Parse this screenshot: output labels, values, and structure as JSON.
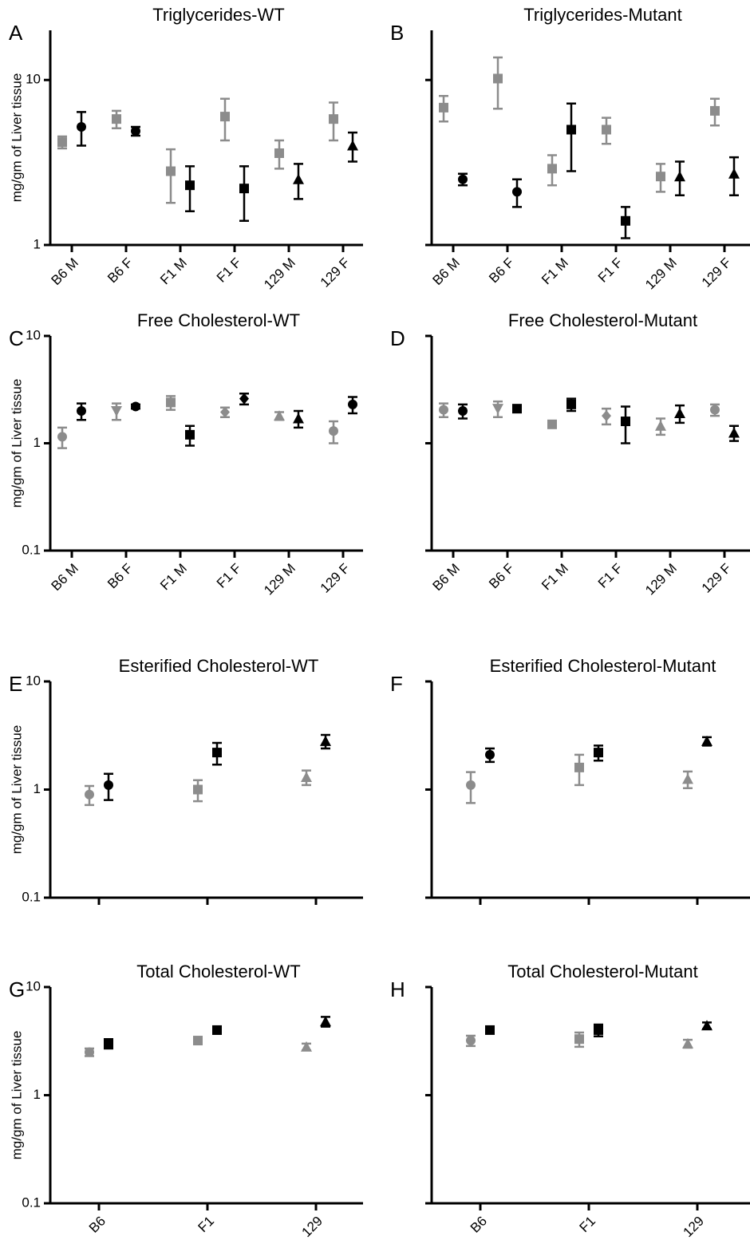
{
  "chart_data": [
    {
      "type": "scatter",
      "panel": "A",
      "title": "Triglycerides-WT",
      "ylabel": "mg/gm of Liver tissue",
      "categories": [
        "B6 M",
        "B6 F",
        "F1 M",
        "F1 F",
        "129 M",
        "129 F"
      ],
      "ylim": [
        1,
        20
      ],
      "yticks": [
        1,
        10
      ],
      "log_y": true,
      "ytick_labels": true,
      "series": [
        {
          "color": "#8c8c8c",
          "markers": [
            "square",
            "square",
            "square",
            "square",
            "square",
            "square"
          ],
          "values": [
            4.2,
            5.8,
            2.8,
            6.0,
            3.6,
            5.8
          ],
          "errors": [
            0.35,
            0.7,
            1.0,
            1.7,
            0.7,
            1.5
          ]
        },
        {
          "color": "#000000",
          "markers": [
            "circle",
            "circle",
            "square",
            "square",
            "triangle",
            "triangle"
          ],
          "values": [
            5.2,
            4.9,
            2.3,
            2.2,
            2.5,
            4.0
          ],
          "errors": [
            1.2,
            0.3,
            0.7,
            0.8,
            0.6,
            0.8
          ]
        }
      ]
    },
    {
      "type": "scatter",
      "panel": "B",
      "title": "Triglycerides-Mutant",
      "categories": [
        "B6 M",
        "B6 F",
        "F1 M",
        "F1 F",
        "129 M",
        "129 F"
      ],
      "ylim": [
        1,
        20
      ],
      "yticks": [
        1,
        10
      ],
      "log_y": true,
      "ytick_labels": false,
      "series": [
        {
          "color": "#8c8c8c",
          "markers": [
            "square",
            "square",
            "square",
            "square",
            "square",
            "square"
          ],
          "values": [
            6.8,
            10.2,
            2.9,
            5.0,
            2.6,
            6.5
          ],
          "errors": [
            1.2,
            3.5,
            0.6,
            0.9,
            0.5,
            1.2
          ]
        },
        {
          "color": "#000000",
          "markers": [
            "circle",
            "circle",
            "square",
            "square",
            "triangle",
            "triangle"
          ],
          "values": [
            2.5,
            2.1,
            5.0,
            1.4,
            2.6,
            2.7
          ],
          "errors": [
            0.2,
            0.4,
            2.2,
            0.3,
            0.6,
            0.7
          ]
        }
      ]
    },
    {
      "type": "scatter",
      "panel": "C",
      "title": "Free Cholesterol-WT",
      "ylabel": "mg/gm of Liver tissue",
      "categories": [
        "B6 M",
        "B6 F",
        "F1 M",
        "F1 F",
        "129 M",
        "129 F"
      ],
      "ylim": [
        0.1,
        10
      ],
      "yticks": [
        0.1,
        1,
        10
      ],
      "log_y": true,
      "ytick_labels": true,
      "series": [
        {
          "color": "#8c8c8c",
          "markers": [
            "circle",
            "triangle-down",
            "square",
            "diamond",
            "triangle",
            "circle"
          ],
          "values": [
            1.15,
            2.0,
            2.4,
            1.95,
            1.8,
            1.3
          ],
          "errors": [
            0.25,
            0.35,
            0.35,
            0.2,
            0.15,
            0.3
          ]
        },
        {
          "color": "#000000",
          "markers": [
            "circle",
            "circle",
            "square",
            "diamond",
            "triangle",
            "circle"
          ],
          "values": [
            2.0,
            2.2,
            1.2,
            2.6,
            1.7,
            2.3
          ],
          "errors": [
            0.35,
            0.1,
            0.25,
            0.3,
            0.3,
            0.4
          ]
        }
      ]
    },
    {
      "type": "scatter",
      "panel": "D",
      "title": "Free Cholesterol-Mutant",
      "categories": [
        "B6 M",
        "B6 F",
        "F1 M",
        "F1 F",
        "129 M",
        "129 F"
      ],
      "ylim": [
        0.1,
        10
      ],
      "yticks": [
        0.1,
        1,
        10
      ],
      "log_y": true,
      "ytick_labels": false,
      "series": [
        {
          "color": "#8c8c8c",
          "markers": [
            "circle",
            "triangle-down",
            "square",
            "diamond",
            "triangle",
            "circle"
          ],
          "values": [
            2.05,
            2.1,
            1.5,
            1.8,
            1.45,
            2.05
          ],
          "errors": [
            0.3,
            0.35,
            0.1,
            0.3,
            0.25,
            0.25
          ]
        },
        {
          "color": "#000000",
          "markers": [
            "circle",
            "square",
            "square",
            "square",
            "triangle",
            "triangle"
          ],
          "values": [
            2.0,
            2.1,
            2.3,
            1.6,
            1.9,
            1.25
          ],
          "errors": [
            0.3,
            0.15,
            0.3,
            0.6,
            0.35,
            0.2
          ]
        }
      ]
    },
    {
      "type": "scatter",
      "panel": "E",
      "title": "Esterified Cholesterol-WT",
      "ylabel": "mg/gm of Liver tissue",
      "categories": [
        null,
        null,
        null
      ],
      "ylim": [
        0.1,
        10
      ],
      "yticks": [
        0.1,
        1,
        10
      ],
      "log_y": true,
      "ytick_labels": true,
      "series": [
        {
          "color": "#8c8c8c",
          "markers": [
            "circle",
            "square",
            "triangle"
          ],
          "values": [
            0.9,
            1.0,
            1.3
          ],
          "errors": [
            0.18,
            0.22,
            0.2
          ]
        },
        {
          "color": "#000000",
          "markers": [
            "circle",
            "square",
            "triangle"
          ],
          "values": [
            1.1,
            2.2,
            2.8
          ],
          "errors": [
            0.3,
            0.5,
            0.4
          ]
        }
      ]
    },
    {
      "type": "scatter",
      "panel": "F",
      "title": "Esterified Cholesterol-Mutant",
      "categories": [
        null,
        null,
        null
      ],
      "ylim": [
        0.1,
        10
      ],
      "yticks": [
        0.1,
        1,
        10
      ],
      "log_y": true,
      "ytick_labels": false,
      "series": [
        {
          "color": "#8c8c8c",
          "markers": [
            "circle",
            "square",
            "triangle"
          ],
          "values": [
            1.1,
            1.6,
            1.25
          ],
          "errors": [
            0.35,
            0.5,
            0.22
          ]
        },
        {
          "color": "#000000",
          "markers": [
            "circle",
            "square",
            "triangle"
          ],
          "values": [
            2.1,
            2.2,
            2.8
          ],
          "errors": [
            0.3,
            0.35,
            0.25
          ]
        }
      ]
    },
    {
      "type": "scatter",
      "panel": "G",
      "title": "Total Cholesterol-WT",
      "ylabel": "mg/gm of Liver tissue",
      "categories": [
        "B6",
        "F1",
        "129"
      ],
      "ylim": [
        0.1,
        10
      ],
      "yticks": [
        0.1,
        1,
        10
      ],
      "log_y": true,
      "ytick_labels": true,
      "series": [
        {
          "color": "#8c8c8c",
          "markers": [
            "circle",
            "square",
            "triangle"
          ],
          "values": [
            2.5,
            3.2,
            2.8
          ],
          "errors": [
            0.2,
            0.15,
            0.2
          ]
        },
        {
          "color": "#000000",
          "markers": [
            "square",
            "square",
            "triangle"
          ],
          "values": [
            3.0,
            4.0,
            4.8
          ],
          "errors": [
            0.3,
            0.3,
            0.5
          ]
        }
      ]
    },
    {
      "type": "scatter",
      "panel": "H",
      "title": "Total Cholesterol-Mutant",
      "categories": [
        "B6",
        "F1",
        "129"
      ],
      "ylim": [
        0.1,
        10
      ],
      "yticks": [
        0.1,
        1,
        10
      ],
      "log_y": true,
      "ytick_labels": false,
      "series": [
        {
          "color": "#8c8c8c",
          "markers": [
            "circle",
            "square",
            "triangle"
          ],
          "values": [
            3.2,
            3.3,
            3.0
          ],
          "errors": [
            0.35,
            0.5,
            0.25
          ]
        },
        {
          "color": "#000000",
          "markers": [
            "square",
            "square",
            "triangle"
          ],
          "values": [
            4.0,
            4.0,
            4.4
          ],
          "errors": [
            0.25,
            0.5,
            0.3
          ]
        }
      ]
    }
  ]
}
